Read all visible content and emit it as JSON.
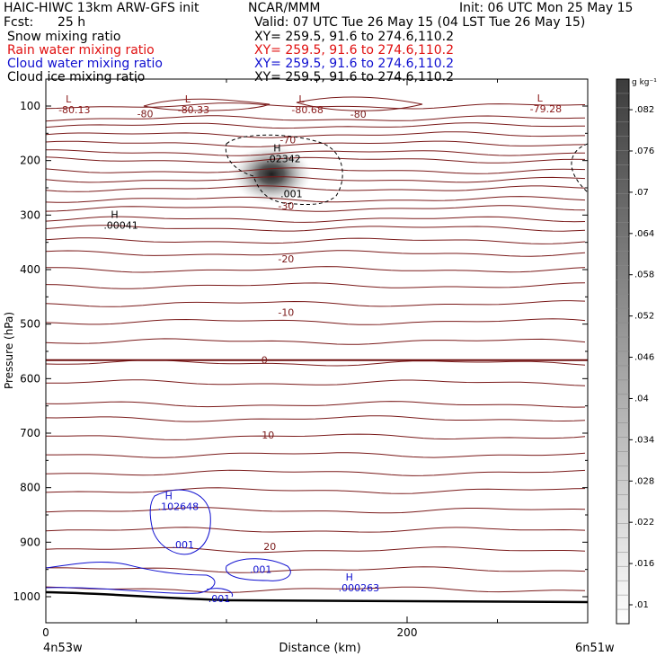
{
  "header": {
    "model": "HAIC-HIWC 13km ARW-GFS init",
    "org": "NCAR/MMM",
    "init": "Init: 06 UTC Mon 25 May 15",
    "fcst_label": "Fcst:",
    "fcst_value": "25 h",
    "valid": "Valid: 07 UTC Tue 26 May 15 (04 LST Tue 26 May 15)",
    "fields": [
      {
        "name": "Snow mixing ratio",
        "xy": "XY= 259.5, 91.6 to 274.6,110.2",
        "color": "#000000"
      },
      {
        "name": "Rain water mixing ratio",
        "xy": "XY= 259.5, 91.6 to 274.6,110.2",
        "color": "#e01010"
      },
      {
        "name": "Cloud water mixing ratio",
        "xy": "XY= 259.5, 91.6 to 274.6,110.2",
        "color": "#1010d0"
      },
      {
        "name": "Cloud ice mixing ratio",
        "xy": "XY= 259.5, 91.6 to 274.6,110.2",
        "color": "#000000"
      }
    ]
  },
  "chart_data": {
    "type": "contour-cross-section",
    "xlabel": "Distance (km)",
    "ylabel": "Pressure (hPa)",
    "xlim": [
      0,
      300
    ],
    "ylim": [
      1050,
      50
    ],
    "x_ticks": [
      {
        "value": 0,
        "label": "0"
      },
      {
        "value": 200,
        "label": "200"
      }
    ],
    "x_minor_ticks": [
      50,
      100,
      150,
      250
    ],
    "y_ticks": [
      100,
      200,
      300,
      400,
      500,
      600,
      700,
      800,
      900,
      1000
    ],
    "left_endpoint_label": "4n53w",
    "right_endpoint_label": "6n51w",
    "colorbar": {
      "unit": "g kg⁻¹",
      "ticks": [
        ".01",
        ".016",
        ".022",
        ".028",
        ".034",
        ".04",
        ".046",
        ".052",
        ".058",
        ".064",
        ".07",
        ".076",
        ".082"
      ]
    },
    "temperature_contour_labels": [
      {
        "text": "-80",
        "x": 55,
        "p": 114
      },
      {
        "text": "-80",
        "x": 173,
        "p": 115
      },
      {
        "text": "-70",
        "x": 134,
        "p": 162
      },
      {
        "text": "-30",
        "x": 133,
        "p": 283
      },
      {
        "text": "-20",
        "x": 133,
        "p": 380
      },
      {
        "text": "-10",
        "x": 133,
        "p": 478
      },
      {
        "text": "0",
        "x": 121,
        "p": 566
      },
      {
        "text": "10",
        "x": 123,
        "p": 703
      },
      {
        "text": "20",
        "x": 124,
        "p": 908
      }
    ],
    "extrema_labels": [
      {
        "kind": "L",
        "value": "-80.13",
        "x": 7,
        "p": 100,
        "color": "#8b1a1a"
      },
      {
        "kind": "L",
        "value": "-80.33",
        "x": 73,
        "p": 100,
        "color": "#8b1a1a"
      },
      {
        "kind": "L",
        "value": "-80.68",
        "x": 136,
        "p": 100,
        "color": "#8b1a1a"
      },
      {
        "kind": "L",
        "value": "-79.28",
        "x": 268,
        "p": 98,
        "color": "#8b1a1a"
      },
      {
        "kind": "H",
        "value": ".02342",
        "x": 122,
        "p": 190,
        "color": "#000000"
      },
      {
        "kind": "H",
        "value": ".00041",
        "x": 32,
        "p": 312,
        "color": "#000000"
      },
      {
        "kind": "H",
        "value": ".102648",
        "x": 62,
        "p": 828,
        "color": "#1010d0"
      },
      {
        "kind": "H",
        "value": ".000263",
        "x": 162,
        "p": 977,
        "color": "#1010d0"
      }
    ],
    "moisture_contour_labels": [
      {
        "text": ".001",
        "x": 136,
        "p": 261,
        "color": "#000000"
      },
      {
        "text": ".001",
        "x": 76,
        "p": 904,
        "color": "#1010d0"
      },
      {
        "text": ".001",
        "x": 119,
        "p": 950,
        "color": "#1010d0"
      },
      {
        "text": ".001",
        "x": 96,
        "p": 1003,
        "color": "#1010d0"
      }
    ],
    "snow_max": {
      "x": 125,
      "p": 225,
      "value": 0.0234
    }
  }
}
